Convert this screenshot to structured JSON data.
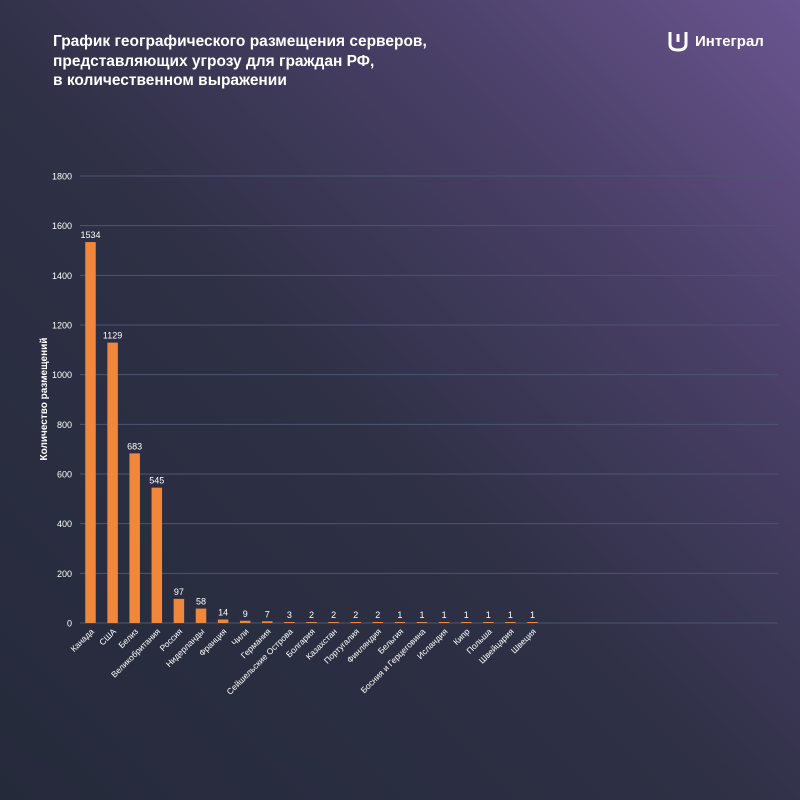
{
  "title_lines": [
    "График географического размещения серверов,",
    "представляющих угрозу для граждан РФ,",
    "в количественном выражении"
  ],
  "brand": {
    "name": "Интеграл",
    "logo_icon": "bracket-logo-icon"
  },
  "colors": {
    "bar": "#f0873a",
    "grid": "#4d5570",
    "text": "#ffffff"
  },
  "chart_data": {
    "type": "bar",
    "title": "График географического размещения серверов, представляющих угрозу для граждан РФ, в количественном выражении",
    "ylabel": "Количество размещений",
    "xlabel": "",
    "ylim": [
      0,
      1800
    ],
    "yticks": [
      0,
      200,
      400,
      600,
      800,
      1000,
      1200,
      1400,
      1600,
      1800
    ],
    "grid": true,
    "categories": [
      "Канада",
      "США",
      "Белиз",
      "Великобритания",
      "Россия",
      "Нидерланды",
      "Франция",
      "Чили",
      "Германия",
      "Сейшельские Острова",
      "Болгария",
      "Казахстан",
      "Португалия",
      "Финляндия",
      "Бельгия",
      "Босния и Герцеговина",
      "Исландия",
      "Кипр",
      "Польша",
      "Швейцария",
      "Швеция"
    ],
    "values": [
      1534,
      1129,
      683,
      545,
      97,
      58,
      14,
      9,
      7,
      3,
      2,
      2,
      2,
      2,
      1,
      1,
      1,
      1,
      1,
      1,
      1
    ]
  }
}
